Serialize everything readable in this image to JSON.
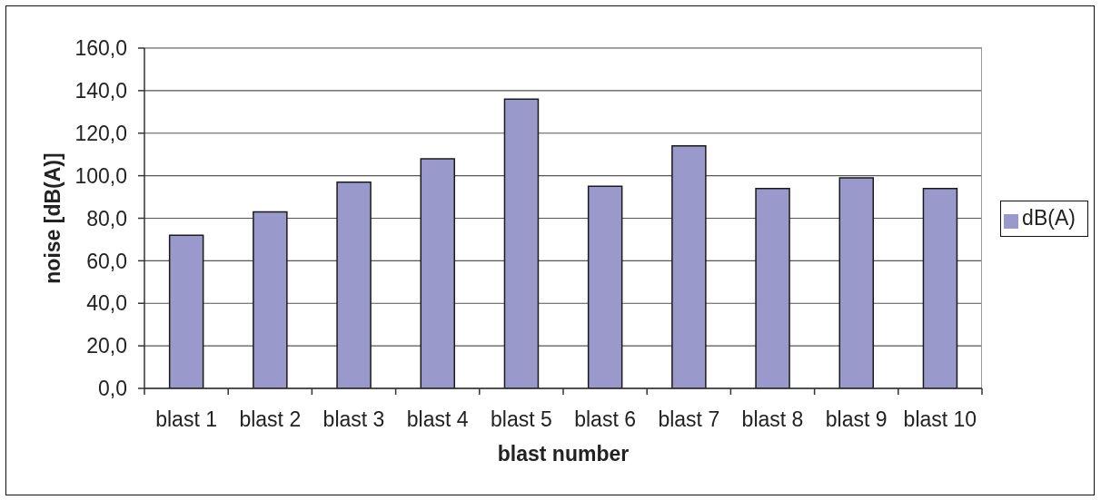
{
  "chart_data": {
    "type": "bar",
    "xlabel": "blast number",
    "ylabel": "noise [dB(A)]",
    "categories": [
      "blast 1",
      "blast 2",
      "blast 3",
      "blast 4",
      "blast 5",
      "blast 6",
      "blast 7",
      "blast 8",
      "blast 9",
      "blast 10"
    ],
    "series": [
      {
        "name": "dB(A)",
        "color": "#9999cc",
        "values": [
          72,
          83,
          97,
          108,
          136,
          95,
          114,
          94,
          99,
          94
        ]
      }
    ],
    "ylim": [
      0,
      160
    ],
    "yticks": [
      {
        "value": 0,
        "label": "0,0"
      },
      {
        "value": 20,
        "label": "20,0"
      },
      {
        "value": 40,
        "label": "40,0"
      },
      {
        "value": 60,
        "label": "60,0"
      },
      {
        "value": 80,
        "label": "80,0"
      },
      {
        "value": 100,
        "label": "100,0"
      },
      {
        "value": 120,
        "label": "120,0"
      },
      {
        "value": 140,
        "label": "140,0"
      },
      {
        "value": 160,
        "label": "160,0"
      }
    ],
    "grid": "y",
    "legend": "right"
  }
}
